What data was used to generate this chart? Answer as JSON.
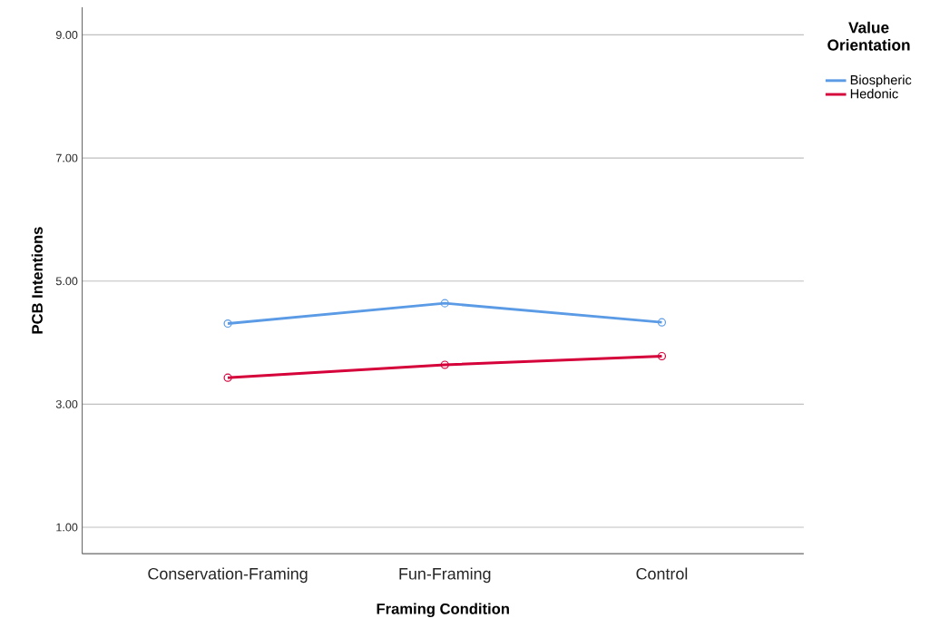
{
  "chart_data": {
    "type": "line",
    "xlabel": "Framing Condition",
    "ylabel": "PCB Intentions",
    "legend_title": "Value Orientation",
    "categories": [
      "Conservation-Framing",
      "Fun-Framing",
      "Control"
    ],
    "series": [
      {
        "name": "Biospheric",
        "color": "#5b9be6",
        "values": [
          4.31,
          4.64,
          4.33
        ]
      },
      {
        "name": "Hedonic",
        "color": "#d5003a",
        "values": [
          3.43,
          3.64,
          3.78
        ]
      }
    ],
    "ylim": [
      0.57,
      9.45
    ],
    "yticks": [
      {
        "value": 1,
        "label": "1.00"
      },
      {
        "value": 3,
        "label": "3.00"
      },
      {
        "value": 5,
        "label": "5.00"
      },
      {
        "value": 7,
        "label": "7.00"
      },
      {
        "value": 9,
        "label": "9.00"
      }
    ],
    "grid": "y",
    "legend": "top right",
    "marker": "circle"
  }
}
